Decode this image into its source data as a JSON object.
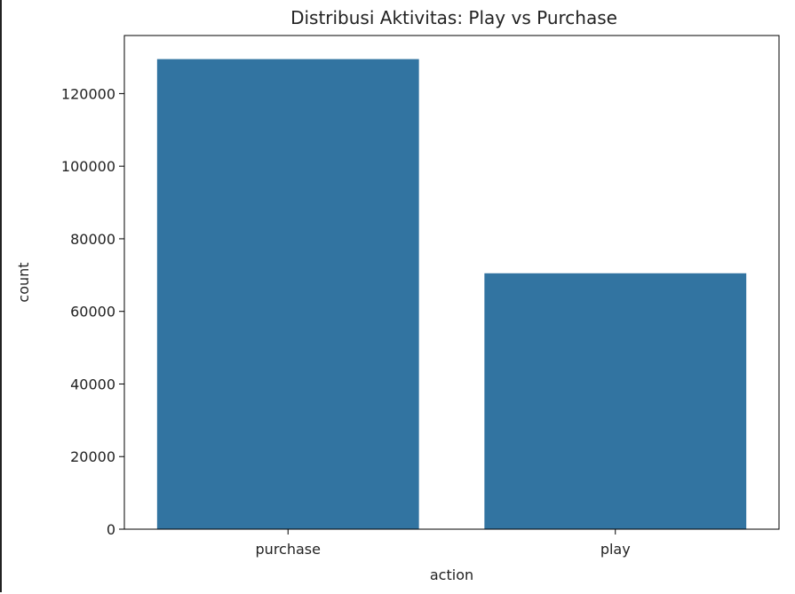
{
  "chart_data": {
    "type": "bar",
    "title": "Distribusi Aktivitas: Play vs Purchase",
    "xlabel": "action",
    "ylabel": "count",
    "categories": [
      "purchase",
      "play"
    ],
    "values": [
      129500,
      70500
    ],
    "ylim": [
      0,
      136000
    ],
    "yticks": [
      0,
      20000,
      40000,
      60000,
      80000,
      100000,
      120000
    ],
    "ytick_labels": [
      "0",
      "20000",
      "40000",
      "60000",
      "80000",
      "100000",
      "120000"
    ],
    "bar_color": "#3274a1",
    "grid": false,
    "legend": "none"
  }
}
